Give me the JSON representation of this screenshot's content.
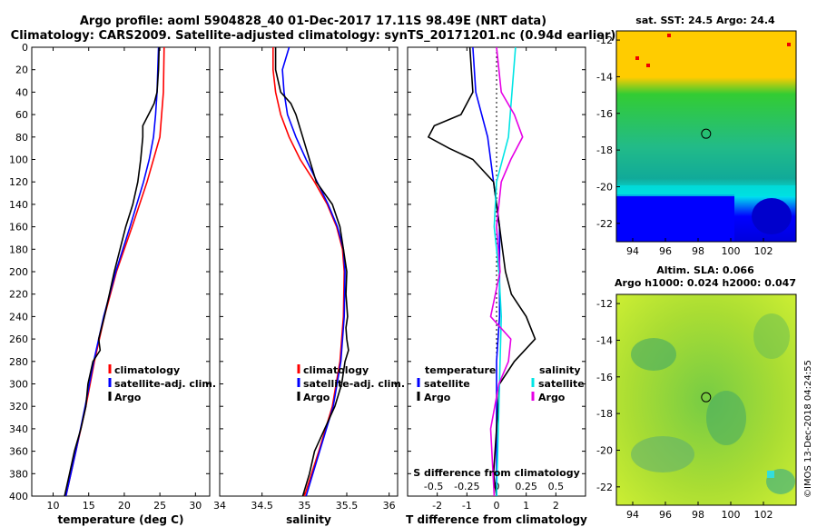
{
  "header": {
    "title_line1": "Argo profile: aoml 5904828_40 01-Dec-2017 17.11S 98.49E (NRT data)",
    "title_line2": "Climatology: CARS2009. Satellite-adjusted climatology: synTS_20171201.nc (0.94d earlier)"
  },
  "credit": "©IMOS 13-Dec-2018 04:24:55",
  "colors": {
    "climatology": "#ff0000",
    "satellite": "#0000ff",
    "argo": "#000000",
    "sal_satellite": "#00e5e5",
    "sal_argo": "#e600e6"
  },
  "chart_data": [
    {
      "type": "line",
      "id": "temperature",
      "xlabel": "temperature (deg C)",
      "ylabel": "depth",
      "xlim": [
        7,
        32
      ],
      "ylim": [
        400,
        0
      ],
      "x_ticks": [
        "10",
        "15",
        "20",
        "25",
        "30"
      ],
      "x_tick_values": [
        10,
        15,
        20,
        25,
        30
      ],
      "y_ticks": [
        "0",
        "20",
        "40",
        "60",
        "80",
        "100",
        "120",
        "140",
        "160",
        "180",
        "200",
        "220",
        "240",
        "260",
        "280",
        "300",
        "320",
        "340",
        "360",
        "380",
        "400"
      ],
      "y_tick_values": [
        0,
        20,
        40,
        60,
        80,
        100,
        120,
        140,
        160,
        180,
        200,
        220,
        240,
        260,
        280,
        300,
        320,
        340,
        360,
        380,
        400
      ],
      "legend": [
        "climatology",
        "satellite-adj. clim.",
        "Argo"
      ],
      "series": [
        {
          "name": "climatology",
          "color": "#ff0000",
          "depth": [
            0,
            40,
            80,
            120,
            160,
            200,
            240,
            280,
            320,
            360,
            400
          ],
          "values": [
            25.6,
            25.5,
            25.0,
            23.2,
            21.1,
            18.9,
            17.2,
            15.8,
            14.6,
            13.2,
            11.8
          ]
        },
        {
          "name": "satellite-adj. clim.",
          "color": "#0000ff",
          "depth": [
            0,
            20,
            40,
            60,
            80,
            100,
            120,
            160,
            200,
            240,
            280,
            320,
            360,
            400
          ],
          "values": [
            24.8,
            24.7,
            24.6,
            24.4,
            24.1,
            23.5,
            22.7,
            20.8,
            18.8,
            17.1,
            15.7,
            14.5,
            13.2,
            11.8
          ]
        },
        {
          "name": "Argo",
          "color": "#000000",
          "depth": [
            0,
            20,
            40,
            50,
            60,
            70,
            80,
            100,
            120,
            140,
            160,
            180,
            200,
            220,
            240,
            260,
            270,
            280,
            300,
            320,
            340,
            360,
            380,
            400
          ],
          "values": [
            24.9,
            24.8,
            24.6,
            24.2,
            23.4,
            22.6,
            22.6,
            22.3,
            21.9,
            21.2,
            20.2,
            19.4,
            18.6,
            17.9,
            17.2,
            16.4,
            16.6,
            15.6,
            14.9,
            14.6,
            13.9,
            13.0,
            12.3,
            11.6
          ]
        }
      ]
    },
    {
      "type": "line",
      "id": "salinity",
      "xlabel": "salinity",
      "ylabel": "depth",
      "xlim": [
        34,
        36.1
      ],
      "ylim": [
        400,
        0
      ],
      "x_ticks": [
        "34",
        "34.5",
        "35",
        "35.5",
        "36"
      ],
      "x_tick_values": [
        34,
        34.5,
        35,
        35.5,
        36
      ],
      "legend": [
        "climatology",
        "satellite-adj. clim.",
        "Argo"
      ],
      "series": [
        {
          "name": "climatology",
          "color": "#ff0000",
          "depth": [
            0,
            20,
            40,
            60,
            80,
            100,
            120,
            140,
            160,
            180,
            200,
            240,
            280,
            320,
            360,
            400
          ],
          "values": [
            34.63,
            34.63,
            34.66,
            34.72,
            34.82,
            34.95,
            35.12,
            35.27,
            35.38,
            35.45,
            35.47,
            35.46,
            35.42,
            35.33,
            35.17,
            35.0
          ],
          "note": "approximate"
        },
        {
          "name": "satellite-adj. clim.",
          "color": "#0000ff",
          "depth": [
            0,
            20,
            40,
            60,
            80,
            100,
            120,
            140,
            160,
            180,
            200,
            240,
            280,
            320,
            360,
            400
          ],
          "values": [
            34.82,
            34.74,
            34.76,
            34.8,
            34.9,
            35.02,
            35.15,
            35.28,
            35.39,
            35.46,
            35.48,
            35.47,
            35.43,
            35.34,
            35.18,
            35.02
          ]
        },
        {
          "name": "Argo",
          "color": "#000000",
          "depth": [
            0,
            20,
            40,
            50,
            60,
            80,
            100,
            120,
            140,
            160,
            180,
            200,
            220,
            240,
            250,
            260,
            270,
            280,
            300,
            320,
            340,
            360,
            380,
            400
          ],
          "values": [
            34.66,
            34.66,
            34.72,
            34.84,
            34.9,
            34.98,
            35.06,
            35.14,
            35.33,
            35.42,
            35.46,
            35.5,
            35.49,
            35.51,
            35.49,
            35.5,
            35.52,
            35.48,
            35.44,
            35.36,
            35.24,
            35.12,
            35.06,
            34.98
          ]
        }
      ]
    },
    {
      "type": "line",
      "id": "difference",
      "xlabel": "T difference from climatology",
      "x2label": "S difference from climatology",
      "xlim": [
        -3,
        3
      ],
      "ylim": [
        400,
        0
      ],
      "x_ticks": [
        "-2",
        "-1",
        "0",
        "1",
        "2"
      ],
      "x_tick_values": [
        -2,
        -1,
        0,
        1,
        2
      ],
      "x2_ticks": [
        "-0.5",
        "-0.25",
        "0",
        "0.25",
        "0.5"
      ],
      "x2_tick_values": [
        -0.5,
        -0.25,
        0,
        0.25,
        0.5
      ],
      "legend_left_title": "temperature",
      "legend_right_title": "salinity",
      "legend_left": [
        "satellite",
        "Argo"
      ],
      "legend_right": [
        "satellite",
        "Argo"
      ],
      "series": [
        {
          "name": "T satellite",
          "color": "#0000ff",
          "depth": [
            0,
            40,
            80,
            120,
            160,
            200,
            240,
            280,
            320,
            360,
            400
          ],
          "values": [
            -0.8,
            -0.7,
            -0.3,
            -0.1,
            0.1,
            0.1,
            0.1,
            0.0,
            0.0,
            0.0,
            0.0
          ]
        },
        {
          "name": "T Argo",
          "color": "#000000",
          "depth": [
            0,
            40,
            60,
            70,
            80,
            90,
            100,
            120,
            140,
            160,
            180,
            200,
            220,
            240,
            260,
            280,
            300,
            340,
            380,
            400
          ],
          "values": [
            -0.9,
            -0.8,
            -1.2,
            -2.1,
            -2.3,
            -1.6,
            -0.8,
            -0.1,
            0.0,
            0.1,
            0.2,
            0.3,
            0.5,
            1.0,
            1.3,
            0.6,
            0.1,
            0.0,
            -0.1,
            0.0
          ]
        },
        {
          "name": "S satellite",
          "color": "#00e5e5",
          "depth": [
            0,
            40,
            80,
            120,
            160,
            200,
            240,
            280,
            320,
            360,
            400
          ],
          "values": [
            0.16,
            0.13,
            0.1,
            0.0,
            -0.02,
            0.02,
            0.04,
            0.03,
            0.02,
            0.01,
            0.0
          ]
        },
        {
          "name": "S Argo",
          "color": "#e600e6",
          "depth": [
            0,
            40,
            60,
            80,
            100,
            120,
            160,
            200,
            240,
            260,
            280,
            300,
            340,
            380,
            400
          ],
          "values": [
            0.0,
            0.04,
            0.15,
            0.22,
            0.12,
            0.04,
            0.0,
            0.03,
            -0.05,
            0.12,
            0.1,
            0.02,
            -0.05,
            -0.03,
            -0.02
          ]
        }
      ]
    },
    {
      "type": "heatmap",
      "id": "sst-map",
      "title": "sat. SST: 24.5 Argo: 24.4",
      "x_ticks": [
        "94",
        "96",
        "98",
        "100",
        "102"
      ],
      "x_tick_values": [
        94,
        96,
        98,
        100,
        102
      ],
      "y_ticks": [
        "-12",
        "-14",
        "-16",
        "-18",
        "-20",
        "-22"
      ],
      "y_tick_values": [
        -12,
        -14,
        -16,
        -18,
        -20,
        -22
      ],
      "xlim": [
        93,
        104
      ],
      "ylim": [
        -23,
        -11.5
      ],
      "marker": [
        98.49,
        -17.11
      ]
    },
    {
      "type": "heatmap",
      "id": "sla-map",
      "title_line1": "Altim. SLA: 0.066",
      "title_line2": "Argo h1000: 0.024 h2000: 0.047",
      "x_ticks": [
        "94",
        "96",
        "98",
        "100",
        "102"
      ],
      "x_tick_values": [
        94,
        96,
        98,
        100,
        102
      ],
      "y_ticks": [
        "-12",
        "-14",
        "-16",
        "-18",
        "-20",
        "-22"
      ],
      "y_tick_values": [
        -12,
        -14,
        -16,
        -18,
        -20,
        -22
      ],
      "xlim": [
        93,
        104
      ],
      "ylim": [
        -23,
        -11.5
      ],
      "marker": [
        98.49,
        -17.11
      ]
    }
  ]
}
